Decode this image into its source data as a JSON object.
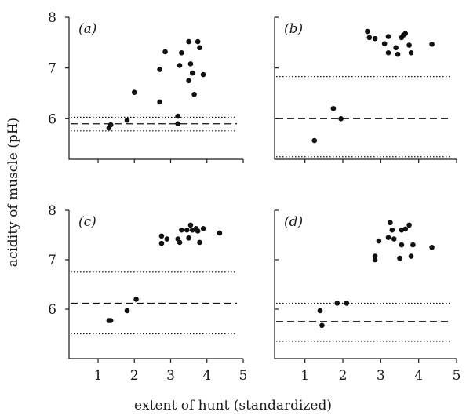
{
  "figure": {
    "ylabel": "acidity of muscle (pH)",
    "xlabel": "extent of hunt (standardized)"
  },
  "chart_data": [
    {
      "type": "scatter",
      "panel": "(a)",
      "x_ticks": [],
      "y_ticks": [
        6,
        7,
        8
      ],
      "xlim": [
        0.2,
        5
      ],
      "ylim": [
        5.2,
        8
      ],
      "points": [
        {
          "x": 1.3,
          "y": 5.82
        },
        {
          "x": 1.35,
          "y": 5.88
        },
        {
          "x": 1.8,
          "y": 5.97
        },
        {
          "x": 2.0,
          "y": 6.52
        },
        {
          "x": 2.7,
          "y": 6.33
        },
        {
          "x": 2.7,
          "y": 6.97
        },
        {
          "x": 2.85,
          "y": 7.32
        },
        {
          "x": 3.2,
          "y": 5.9
        },
        {
          "x": 3.2,
          "y": 6.05
        },
        {
          "x": 3.25,
          "y": 7.05
        },
        {
          "x": 3.3,
          "y": 7.3
        },
        {
          "x": 3.5,
          "y": 6.75
        },
        {
          "x": 3.5,
          "y": 7.52
        },
        {
          "x": 3.55,
          "y": 7.08
        },
        {
          "x": 3.6,
          "y": 6.9
        },
        {
          "x": 3.65,
          "y": 6.48
        },
        {
          "x": 3.75,
          "y": 7.52
        },
        {
          "x": 3.8,
          "y": 7.4
        },
        {
          "x": 3.9,
          "y": 6.87
        }
      ],
      "reference_lines": [
        {
          "style": "dotted",
          "y": 6.03
        },
        {
          "style": "dashed",
          "y": 5.9
        },
        {
          "style": "dotted",
          "y": 5.76
        }
      ]
    },
    {
      "type": "scatter",
      "panel": "(b)",
      "x_ticks": [],
      "y_ticks": [],
      "xlim": [
        0.2,
        5
      ],
      "ylim": [
        5.2,
        8
      ],
      "points": [
        {
          "x": 1.25,
          "y": 5.57
        },
        {
          "x": 1.75,
          "y": 6.2
        },
        {
          "x": 1.95,
          "y": 6.0
        },
        {
          "x": 2.65,
          "y": 7.72
        },
        {
          "x": 2.7,
          "y": 7.6
        },
        {
          "x": 2.85,
          "y": 7.58
        },
        {
          "x": 3.1,
          "y": 7.48
        },
        {
          "x": 3.2,
          "y": 7.62
        },
        {
          "x": 3.2,
          "y": 7.3
        },
        {
          "x": 3.4,
          "y": 7.4
        },
        {
          "x": 3.45,
          "y": 7.27
        },
        {
          "x": 3.55,
          "y": 7.6
        },
        {
          "x": 3.6,
          "y": 7.65
        },
        {
          "x": 3.65,
          "y": 7.68
        },
        {
          "x": 3.75,
          "y": 7.45
        },
        {
          "x": 3.8,
          "y": 7.3
        },
        {
          "x": 4.35,
          "y": 7.47
        }
      ],
      "reference_lines": [
        {
          "style": "dotted",
          "y": 6.83
        },
        {
          "style": "dashed",
          "y": 6.0
        },
        {
          "style": "dotted",
          "y": 5.25
        }
      ]
    },
    {
      "type": "scatter",
      "panel": "(c)",
      "x_ticks": [
        1,
        2,
        3,
        4,
        5
      ],
      "y_ticks": [
        6,
        7,
        8
      ],
      "xlim": [
        0.2,
        5
      ],
      "ylim": [
        5.0,
        8
      ],
      "points": [
        {
          "x": 1.3,
          "y": 5.77
        },
        {
          "x": 1.35,
          "y": 5.77
        },
        {
          "x": 1.8,
          "y": 5.97
        },
        {
          "x": 2.05,
          "y": 6.2
        },
        {
          "x": 2.75,
          "y": 7.48
        },
        {
          "x": 2.75,
          "y": 7.33
        },
        {
          "x": 2.9,
          "y": 7.42
        },
        {
          "x": 3.2,
          "y": 7.42
        },
        {
          "x": 3.25,
          "y": 7.35
        },
        {
          "x": 3.3,
          "y": 7.6
        },
        {
          "x": 3.45,
          "y": 7.6
        },
        {
          "x": 3.5,
          "y": 7.44
        },
        {
          "x": 3.55,
          "y": 7.7
        },
        {
          "x": 3.6,
          "y": 7.6
        },
        {
          "x": 3.7,
          "y": 7.63
        },
        {
          "x": 3.75,
          "y": 7.58
        },
        {
          "x": 3.8,
          "y": 7.35
        },
        {
          "x": 3.9,
          "y": 7.63
        },
        {
          "x": 4.35,
          "y": 7.54
        }
      ],
      "reference_lines": [
        {
          "style": "dotted",
          "y": 6.75
        },
        {
          "style": "dashed",
          "y": 6.12
        },
        {
          "style": "dotted",
          "y": 5.5
        }
      ]
    },
    {
      "type": "scatter",
      "panel": "(d)",
      "x_ticks": [
        1,
        2,
        3,
        4,
        5
      ],
      "y_ticks": [],
      "xlim": [
        0.2,
        5
      ],
      "ylim": [
        5.0,
        8
      ],
      "points": [
        {
          "x": 1.4,
          "y": 5.97
        },
        {
          "x": 1.45,
          "y": 5.67
        },
        {
          "x": 1.85,
          "y": 6.12
        },
        {
          "x": 2.1,
          "y": 6.12
        },
        {
          "x": 2.85,
          "y": 7.0
        },
        {
          "x": 2.85,
          "y": 7.07
        },
        {
          "x": 2.95,
          "y": 7.38
        },
        {
          "x": 3.2,
          "y": 7.45
        },
        {
          "x": 3.25,
          "y": 7.75
        },
        {
          "x": 3.3,
          "y": 7.6
        },
        {
          "x": 3.35,
          "y": 7.42
        },
        {
          "x": 3.5,
          "y": 7.03
        },
        {
          "x": 3.55,
          "y": 7.6
        },
        {
          "x": 3.55,
          "y": 7.3
        },
        {
          "x": 3.65,
          "y": 7.62
        },
        {
          "x": 3.75,
          "y": 7.7
        },
        {
          "x": 3.8,
          "y": 7.07
        },
        {
          "x": 3.85,
          "y": 7.3
        },
        {
          "x": 4.35,
          "y": 7.25
        }
      ],
      "reference_lines": [
        {
          "style": "dotted",
          "y": 6.12
        },
        {
          "style": "dashed",
          "y": 5.75
        },
        {
          "style": "dotted",
          "y": 5.35
        }
      ]
    }
  ]
}
